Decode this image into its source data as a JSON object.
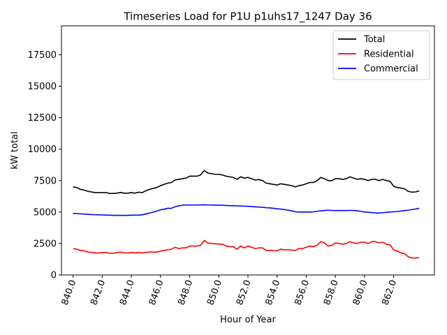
{
  "chart_data": {
    "type": "line",
    "title": "Timeseries Load for P1U p1uhs17_1247  Day 36",
    "xlabel": "Hour of Year",
    "ylabel": "kW total",
    "xlim": [
      839.2,
      864.8
    ],
    "ylim": [
      0,
      19800
    ],
    "xticks": [
      840,
      842,
      844,
      846,
      848,
      850,
      852,
      854,
      856,
      858,
      860,
      862
    ],
    "xtick_labels": [
      "840.0",
      "842.0",
      "844.0",
      "846.0",
      "848.0",
      "850.0",
      "852.0",
      "854.0",
      "856.0",
      "858.0",
      "860.0",
      "862.0"
    ],
    "yticks": [
      0,
      2500,
      5000,
      7500,
      10000,
      12500,
      15000,
      17500
    ],
    "ytick_labels": [
      "0",
      "2500",
      "5000",
      "7500",
      "10000",
      "12500",
      "15000",
      "17500"
    ],
    "legend_position": "upper right",
    "grid": false,
    "x": [
      840.0,
      840.25,
      840.5,
      840.75,
      841.0,
      841.25,
      841.5,
      841.75,
      842.0,
      842.25,
      842.5,
      842.75,
      843.0,
      843.25,
      843.5,
      843.75,
      844.0,
      844.25,
      844.5,
      844.75,
      845.0,
      845.25,
      845.5,
      845.75,
      846.0,
      846.25,
      846.5,
      846.75,
      847.0,
      847.25,
      847.5,
      847.75,
      848.0,
      848.25,
      848.5,
      848.75,
      849.0,
      849.25,
      849.5,
      849.75,
      850.0,
      850.25,
      850.5,
      850.75,
      851.0,
      851.25,
      851.5,
      851.75,
      852.0,
      852.25,
      852.5,
      852.75,
      853.0,
      853.25,
      853.5,
      853.75,
      854.0,
      854.25,
      854.5,
      854.75,
      855.0,
      855.25,
      855.5,
      855.75,
      856.0,
      856.25,
      856.5,
      856.75,
      857.0,
      857.25,
      857.5,
      857.75,
      858.0,
      858.25,
      858.5,
      858.75,
      859.0,
      859.25,
      859.5,
      859.75,
      860.0,
      860.25,
      860.5,
      860.75,
      861.0,
      861.25,
      861.5,
      861.75,
      862.0,
      862.25,
      862.5,
      862.75,
      863.0,
      863.25,
      863.5,
      863.75
    ],
    "series": [
      {
        "name": "Total",
        "color": "#000000",
        "values": [
          7000,
          6950,
          6800,
          6750,
          6650,
          6600,
          6550,
          6550,
          6550,
          6550,
          6480,
          6480,
          6500,
          6560,
          6500,
          6500,
          6550,
          6500,
          6580,
          6550,
          6700,
          6800,
          6880,
          6950,
          7100,
          7200,
          7300,
          7350,
          7550,
          7600,
          7650,
          7700,
          7850,
          7850,
          7850,
          7950,
          8300,
          8100,
          8050,
          8000,
          8000,
          7950,
          7850,
          7800,
          7750,
          7600,
          7800,
          7700,
          7750,
          7650,
          7550,
          7580,
          7500,
          7300,
          7250,
          7200,
          7150,
          7250,
          7200,
          7150,
          7100,
          7000,
          7100,
          7150,
          7250,
          7350,
          7350,
          7500,
          7750,
          7650,
          7500,
          7500,
          7650,
          7650,
          7600,
          7650,
          7800,
          7700,
          7600,
          7650,
          7600,
          7500,
          7600,
          7600,
          7500,
          7600,
          7500,
          7450,
          7050,
          6950,
          6900,
          6850,
          6650,
          6580,
          6600,
          6680
        ]
      },
      {
        "name": "Residential",
        "color": "#ff0000",
        "values": [
          2100,
          2050,
          1950,
          1920,
          1820,
          1800,
          1750,
          1750,
          1780,
          1800,
          1720,
          1720,
          1780,
          1820,
          1750,
          1750,
          1800,
          1750,
          1800,
          1750,
          1800,
          1820,
          1820,
          1820,
          1900,
          1950,
          2000,
          2050,
          2200,
          2100,
          2150,
          2150,
          2300,
          2300,
          2300,
          2350,
          2750,
          2550,
          2500,
          2480,
          2450,
          2450,
          2300,
          2250,
          2250,
          2050,
          2300,
          2150,
          2300,
          2200,
          2100,
          2150,
          2150,
          1950,
          1950,
          1930,
          1920,
          2050,
          2000,
          2000,
          1980,
          1950,
          2100,
          2100,
          2200,
          2300,
          2250,
          2350,
          2650,
          2550,
          2300,
          2350,
          2550,
          2500,
          2450,
          2500,
          2650,
          2550,
          2500,
          2600,
          2600,
          2500,
          2650,
          2650,
          2550,
          2600,
          2450,
          2400,
          2000,
          1900,
          1750,
          1700,
          1450,
          1350,
          1350,
          1380
        ]
      },
      {
        "name": "Commercial",
        "color": "#0000ff",
        "values": [
          4900,
          4880,
          4860,
          4840,
          4820,
          4800,
          4790,
          4780,
          4770,
          4760,
          4750,
          4740,
          4740,
          4740,
          4740,
          4740,
          4750,
          4750,
          4760,
          4780,
          4850,
          4920,
          5000,
          5080,
          5180,
          5230,
          5300,
          5300,
          5420,
          5500,
          5540,
          5560,
          5560,
          5560,
          5560,
          5570,
          5580,
          5560,
          5560,
          5550,
          5550,
          5540,
          5520,
          5510,
          5500,
          5490,
          5480,
          5470,
          5460,
          5440,
          5420,
          5400,
          5380,
          5350,
          5330,
          5300,
          5260,
          5240,
          5200,
          5150,
          5100,
          5020,
          5000,
          5000,
          5000,
          5000,
          5020,
          5060,
          5100,
          5120,
          5150,
          5130,
          5120,
          5120,
          5120,
          5120,
          5130,
          5130,
          5100,
          5060,
          5000,
          4990,
          4960,
          4930,
          4920,
          4950,
          4980,
          5000,
          5020,
          5040,
          5080,
          5120,
          5150,
          5200,
          5240,
          5300
        ]
      }
    ]
  }
}
